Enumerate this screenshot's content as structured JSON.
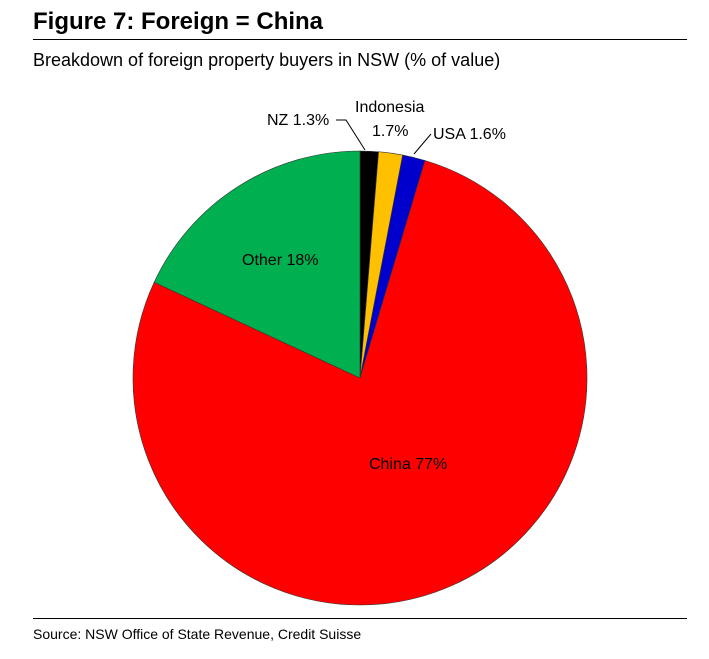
{
  "title": "Figure 7: Foreign = China",
  "subtitle": "Breakdown of foreign property buyers in NSW (% of value)",
  "source": "Source: NSW Office of State Revenue, Credit Suisse",
  "chart_data": {
    "type": "pie",
    "start_angle_deg": 0,
    "direction": "clockwise",
    "slices": [
      {
        "name": "NZ",
        "value": 1.3,
        "label": "NZ 1.3%",
        "color": "#000000"
      },
      {
        "name": "Indonesia",
        "value": 1.7,
        "label_line1": "Indonesia",
        "label_line2": "1.7%",
        "color": "#FFC000"
      },
      {
        "name": "USA",
        "value": 1.6,
        "label": "USA 1.6%",
        "color": "#0000CC"
      },
      {
        "name": "China",
        "value": 77,
        "label": "China 77%",
        "color": "#FF0000"
      },
      {
        "name": "Other",
        "value": 18,
        "label": "Other 18%",
        "color": "#00B050"
      }
    ]
  }
}
